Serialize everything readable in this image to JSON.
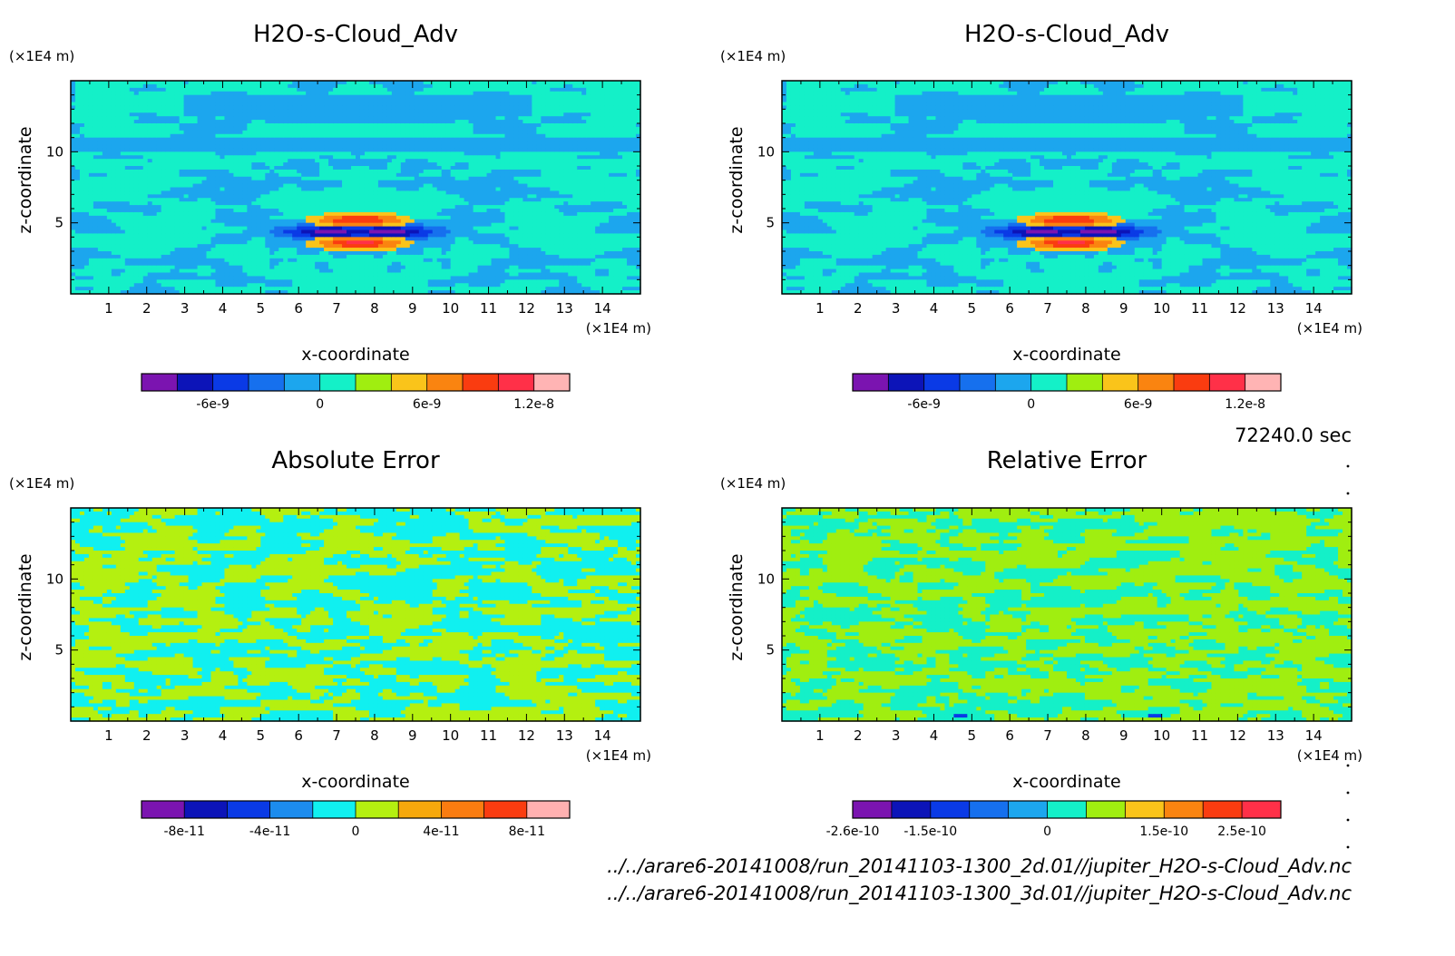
{
  "time_label": "72240.0 sec",
  "footer": {
    "line1": "../../arare6-20141008/run_20141103-1300_2d.01//jupiter_H2O-s-Cloud_Adv.nc",
    "line2": "../../arare6-20141008/run_20141103-1300_3d.01//jupiter_H2O-s-Cloud_Adv.nc"
  },
  "chart_data": [
    {
      "type": "heatmap",
      "title": "H2O-s-Cloud_Adv",
      "xlabel": "x-coordinate",
      "ylabel": "z-coordinate",
      "x_unit": "(×1E4 m)",
      "y_unit": "(×1E4 m)",
      "x_ticks": [
        1,
        2,
        3,
        4,
        5,
        6,
        7,
        8,
        9,
        10,
        11,
        12,
        13,
        14
      ],
      "y_ticks": [
        5,
        10
      ],
      "xlim": [
        0,
        15
      ],
      "ylim": [
        0,
        15
      ],
      "field": "cloud",
      "colorbar": {
        "colors": [
          "#7b14b0",
          "#0c14b8",
          "#0a3ae6",
          "#1670ee",
          "#1ca6ee",
          "#14f0c8",
          "#a0ee10",
          "#fac41a",
          "#fa8410",
          "#fa3c10",
          "#ff3048",
          "#ffb4b4"
        ],
        "tick_labels": [
          "-6e-9",
          "0",
          "6e-9",
          "1.2e-8"
        ],
        "tick_boundaries": [
          2,
          5,
          8,
          11
        ]
      }
    },
    {
      "type": "heatmap",
      "title": "H2O-s-Cloud_Adv",
      "xlabel": "x-coordinate",
      "ylabel": "z-coordinate",
      "x_unit": "(×1E4 m)",
      "y_unit": "(×1E4 m)",
      "x_ticks": [
        1,
        2,
        3,
        4,
        5,
        6,
        7,
        8,
        9,
        10,
        11,
        12,
        13,
        14
      ],
      "y_ticks": [
        5,
        10
      ],
      "xlim": [
        0,
        15
      ],
      "ylim": [
        0,
        15
      ],
      "field": "cloud",
      "colorbar": {
        "colors": [
          "#7b14b0",
          "#0c14b8",
          "#0a3ae6",
          "#1670ee",
          "#1ca6ee",
          "#14f0c8",
          "#a0ee10",
          "#fac41a",
          "#fa8410",
          "#fa3c10",
          "#ff3048",
          "#ffb4b4"
        ],
        "tick_labels": [
          "-6e-9",
          "0",
          "6e-9",
          "1.2e-8"
        ],
        "tick_boundaries": [
          2,
          5,
          8,
          11
        ]
      }
    },
    {
      "type": "heatmap",
      "title": "Absolute Error",
      "xlabel": "x-coordinate",
      "ylabel": "z-coordinate",
      "x_unit": "(×1E4 m)",
      "y_unit": "(×1E4 m)",
      "x_ticks": [
        1,
        2,
        3,
        4,
        5,
        6,
        7,
        8,
        9,
        10,
        11,
        12,
        13,
        14
      ],
      "y_ticks": [
        5,
        10
      ],
      "xlim": [
        0,
        15
      ],
      "ylim": [
        0,
        15
      ],
      "field": "abs",
      "colorbar": {
        "colors": [
          "#7b14b0",
          "#0c14b8",
          "#0a3ae6",
          "#1c8cee",
          "#10f0f0",
          "#b4f010",
          "#f6a80c",
          "#fa7c10",
          "#fa3c10",
          "#ffb0b0"
        ],
        "tick_labels": [
          "-8e-11",
          "-4e-11",
          "0",
          "4e-11",
          "8e-11"
        ],
        "tick_boundaries": [
          1,
          3,
          5,
          7,
          9
        ]
      }
    },
    {
      "type": "heatmap",
      "title": "Relative Error",
      "xlabel": "x-coordinate",
      "ylabel": "z-coordinate",
      "x_unit": "(×1E4 m)",
      "y_unit": "(×1E4 m)",
      "x_ticks": [
        1,
        2,
        3,
        4,
        5,
        6,
        7,
        8,
        9,
        10,
        11,
        12,
        13,
        14
      ],
      "y_ticks": [
        5,
        10
      ],
      "xlim": [
        0,
        15
      ],
      "ylim": [
        0,
        15
      ],
      "field": "rel",
      "colorbar": {
        "colors": [
          "#7b14b0",
          "#0c14b8",
          "#0a3ae6",
          "#1670ee",
          "#1ca6ee",
          "#14f0c8",
          "#a0ee10",
          "#fac41a",
          "#fa8410",
          "#fa3c10",
          "#ff3048"
        ],
        "tick_labels": [
          "-2.6e-10",
          "-1.5e-10",
          "0",
          "1.5e-10",
          "2.5e-10"
        ],
        "tick_boundaries": [
          0,
          2,
          5,
          8,
          10
        ]
      }
    }
  ]
}
